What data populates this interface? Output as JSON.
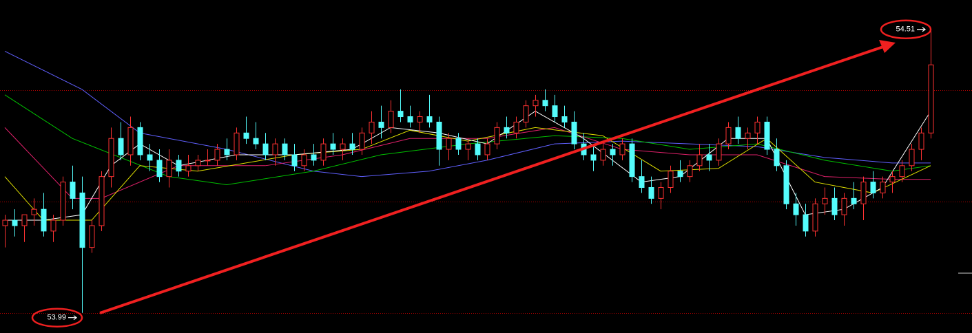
{
  "chart_data": {
    "type": "candlestick",
    "ylim": [
      53.953,
      54.564
    ],
    "up_color": "#ff3232",
    "down_color": "#54fcfc",
    "hlines": [
      54.398,
      54.194,
      53.99
    ],
    "hline_color": "#b00000",
    "open": [
      54.15,
      54.16,
      54.15,
      54.17,
      54.18,
      54.14,
      54.16,
      54.23,
      54.21,
      54.11,
      54.15,
      54.24,
      54.31,
      54.28,
      54.33,
      54.28,
      54.27,
      54.24,
      54.27,
      54.25,
      54.26,
      54.27,
      54.27,
      54.29,
      54.28,
      54.32,
      54.31,
      54.3,
      54.28,
      54.3,
      54.28,
      54.26,
      54.28,
      54.27,
      54.3,
      54.29,
      54.3,
      54.29,
      54.32,
      54.34,
      54.33,
      54.36,
      54.35,
      54.34,
      54.35,
      54.34,
      54.29,
      54.31,
      54.29,
      54.3,
      54.28,
      54.3,
      54.33,
      54.32,
      54.34,
      54.37,
      54.38,
      54.37,
      54.35,
      54.34,
      54.3,
      54.28,
      54.27,
      54.29,
      54.28,
      54.3,
      54.24,
      54.22,
      54.2,
      54.22,
      54.25,
      54.24,
      54.26,
      54.28,
      54.27,
      54.3,
      54.33,
      54.31,
      54.32,
      54.34,
      54.29,
      54.26,
      54.19,
      54.17,
      54.14,
      54.19,
      54.2,
      54.17,
      54.2,
      54.19,
      54.23,
      54.21,
      54.23,
      54.24,
      54.26,
      54.29,
      54.32
    ],
    "high": [
      54.17,
      54.18,
      54.17,
      54.2,
      54.21,
      54.17,
      54.24,
      54.26,
      54.24,
      54.16,
      54.25,
      54.33,
      54.34,
      54.35,
      54.34,
      54.3,
      54.29,
      54.29,
      54.28,
      54.28,
      54.28,
      54.29,
      54.3,
      54.31,
      54.33,
      54.35,
      54.34,
      54.32,
      54.31,
      54.31,
      54.3,
      54.29,
      54.3,
      54.31,
      54.32,
      54.31,
      54.32,
      54.33,
      54.36,
      54.37,
      54.38,
      54.4,
      54.37,
      54.36,
      54.39,
      54.35,
      54.32,
      54.32,
      54.31,
      54.31,
      54.31,
      54.34,
      54.35,
      54.35,
      54.38,
      54.39,
      54.4,
      54.39,
      54.37,
      54.36,
      54.32,
      54.3,
      54.3,
      54.3,
      54.31,
      54.31,
      54.27,
      54.24,
      54.23,
      54.26,
      54.27,
      54.27,
      54.3,
      54.3,
      54.31,
      54.34,
      54.35,
      54.33,
      54.35,
      54.35,
      54.31,
      54.27,
      54.21,
      54.19,
      54.2,
      54.22,
      54.22,
      54.21,
      54.23,
      54.24,
      54.25,
      54.24,
      54.25,
      54.27,
      54.3,
      54.33,
      54.51
    ],
    "low": [
      54.11,
      54.13,
      54.12,
      54.15,
      54.13,
      54.12,
      54.15,
      54.18,
      53.99,
      54.1,
      54.14,
      54.22,
      54.27,
      54.26,
      54.27,
      54.25,
      54.23,
      54.22,
      54.24,
      54.24,
      54.25,
      54.26,
      54.26,
      54.27,
      54.27,
      54.3,
      54.29,
      54.27,
      54.26,
      54.27,
      54.25,
      54.25,
      54.26,
      54.26,
      54.28,
      54.27,
      54.28,
      54.28,
      54.3,
      54.31,
      54.32,
      54.34,
      54.33,
      54.32,
      54.33,
      54.26,
      54.27,
      54.28,
      54.27,
      54.27,
      54.27,
      54.29,
      54.31,
      54.31,
      54.33,
      54.35,
      54.36,
      54.34,
      54.33,
      54.29,
      54.27,
      54.25,
      54.26,
      54.26,
      54.27,
      54.23,
      54.21,
      54.19,
      54.18,
      54.21,
      54.23,
      54.23,
      54.25,
      54.25,
      54.26,
      54.29,
      54.3,
      54.29,
      54.3,
      54.28,
      54.25,
      54.18,
      54.15,
      54.13,
      54.13,
      54.17,
      54.16,
      54.15,
      54.18,
      54.16,
      54.2,
      54.2,
      54.21,
      54.23,
      54.25,
      54.27,
      54.31
    ],
    "close": [
      54.16,
      54.15,
      54.17,
      54.18,
      54.14,
      54.16,
      54.23,
      54.2,
      54.11,
      54.15,
      54.24,
      54.31,
      54.28,
      54.33,
      54.28,
      54.27,
      54.24,
      54.27,
      54.25,
      54.26,
      54.27,
      54.27,
      54.29,
      54.28,
      54.32,
      54.31,
      54.3,
      54.28,
      54.3,
      54.28,
      54.26,
      54.28,
      54.27,
      54.3,
      54.29,
      54.3,
      54.29,
      54.32,
      54.34,
      54.33,
      54.36,
      54.35,
      54.34,
      54.35,
      54.34,
      54.29,
      54.31,
      54.29,
      54.3,
      54.28,
      54.3,
      54.33,
      54.32,
      54.34,
      54.37,
      54.38,
      54.37,
      54.35,
      54.34,
      54.3,
      54.28,
      54.27,
      54.29,
      54.28,
      54.3,
      54.24,
      54.22,
      54.2,
      54.22,
      54.25,
      54.24,
      54.26,
      54.28,
      54.27,
      54.3,
      54.33,
      54.31,
      54.32,
      54.34,
      54.29,
      54.26,
      54.19,
      54.17,
      54.14,
      54.19,
      54.2,
      54.17,
      54.2,
      54.19,
      54.23,
      54.21,
      54.23,
      54.24,
      54.26,
      54.29,
      54.32,
      54.445
    ],
    "series": [
      {
        "color": "#6060ff",
        "x": [
          0,
          8,
          14,
          23,
          32,
          37,
          44,
          50,
          57,
          64,
          71,
          78,
          85,
          92,
          96
        ],
        "values": [
          54.47,
          54.4,
          54.32,
          54.29,
          54.25,
          54.24,
          54.25,
          54.27,
          54.3,
          54.305,
          54.3,
          54.295,
          54.275,
          54.265,
          54.265
        ]
      },
      {
        "color": "#00c000",
        "x": [
          0,
          7,
          17,
          23,
          32,
          39,
          48,
          57,
          64,
          71,
          78,
          85,
          92,
          96
        ],
        "values": [
          54.39,
          54.31,
          54.24,
          54.225,
          54.25,
          54.28,
          54.3,
          54.315,
          54.31,
          54.29,
          54.3,
          54.27,
          54.25,
          54.26
        ]
      },
      {
        "color": "#e0206a",
        "x": [
          0,
          7,
          10,
          18,
          27,
          35,
          42,
          50,
          57,
          64,
          71,
          78,
          85,
          92,
          96
        ],
        "values": [
          54.33,
          54.2,
          54.2,
          54.26,
          54.26,
          54.28,
          54.31,
          54.31,
          54.33,
          54.29,
          54.28,
          54.28,
          54.24,
          54.235,
          54.235
        ]
      },
      {
        "color": "#e0e000",
        "x": [
          0,
          4,
          9,
          14,
          20,
          30,
          37,
          42,
          48,
          55,
          62,
          68,
          74,
          79,
          84,
          90,
          96
        ],
        "values": [
          54.24,
          54.16,
          54.16,
          54.26,
          54.25,
          54.28,
          54.29,
          54.325,
          54.305,
          54.33,
          54.315,
          54.25,
          54.255,
          54.31,
          54.23,
          54.21,
          54.26
        ]
      },
      {
        "color": "#ffffff",
        "x": [
          0,
          4,
          8,
          11,
          14,
          18,
          24,
          30,
          36,
          40,
          45,
          50,
          55,
          60,
          66,
          70,
          75,
          79,
          83,
          87,
          91,
          96
        ],
        "values": [
          54.16,
          54.16,
          54.17,
          54.26,
          54.3,
          54.26,
          54.28,
          54.28,
          54.29,
          54.33,
          54.32,
          54.3,
          54.36,
          54.31,
          54.23,
          54.24,
          54.31,
          54.31,
          54.17,
          54.18,
          54.22,
          54.36
        ]
      }
    ],
    "annotations": [
      {
        "index": 8,
        "value": 53.99
      },
      {
        "index": 96,
        "value": 54.51
      }
    ]
  }
}
